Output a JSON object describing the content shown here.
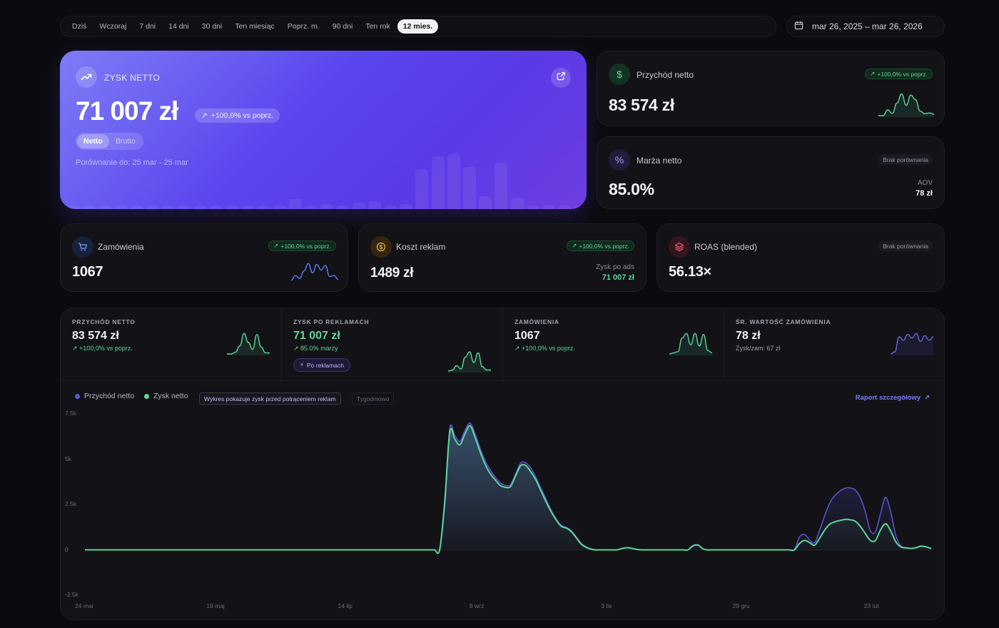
{
  "range_bar": {
    "options": [
      "Dziś",
      "Wczoraj",
      "7 dni",
      "14 dni",
      "30 dni",
      "Ten miesiąc",
      "Poprz. m.",
      "90 dni",
      "Ten rok",
      "12 mies."
    ],
    "active": "12 mies."
  },
  "date_range": {
    "label": "mar 26, 2025 – mar 26, 2026",
    "icon": "calendar-icon"
  },
  "hero": {
    "label": "ZYSK NETTO",
    "value": "71 007 zł",
    "delta": "+100,0% vs poprz.",
    "toggle": {
      "options": [
        "Netto",
        "Brutto"
      ],
      "active": "Netto"
    },
    "comparison": "Porównanie do: 25 mar - 25 mar",
    "background_bars": [
      0.05,
      0.06,
      0.05,
      0.05,
      0.05,
      0.05,
      0.05,
      0.05,
      0.06,
      0.06,
      0.05,
      0.05,
      0.05,
      0.05,
      0.16,
      0.05,
      0.08,
      0.05,
      0.1,
      0.12,
      0.06,
      0.08,
      0.62,
      0.82,
      0.85,
      0.65,
      0.2,
      0.72,
      0.18,
      0.05,
      0.05,
      0.05,
      0.06
    ]
  },
  "revenue_card": {
    "title": "Przychód netto",
    "value": "83 574 zł",
    "delta": "+100,0% vs poprz.",
    "icon": "dollar-icon",
    "spark": [
      0,
      0,
      0.25,
      0.1,
      0.55,
      0.95,
      0.45,
      0.9,
      0.7,
      0.2,
      0.08,
      0.12,
      0.06
    ]
  },
  "margin_card": {
    "title": "Marża netto",
    "value": "85.0%",
    "badge": "Brak porównania",
    "icon": "percent-icon",
    "aov_label": "AOV",
    "aov_value": "78 zł"
  },
  "orders_card": {
    "title": "Zamówienia",
    "value": "1067",
    "delta": "+100,0% vs poprz.",
    "icon": "cart-icon",
    "spark": [
      0.05,
      0.3,
      0.15,
      0.55,
      0.95,
      0.45,
      0.9,
      0.6,
      0.85,
      0.25,
      0.3,
      0.1
    ]
  },
  "ads_card": {
    "title": "Koszt reklam",
    "value": "1489 zł",
    "delta": "+100,0% vs poprz.",
    "icon": "coin-icon",
    "note_label": "Zysk po ads",
    "note_value": "71 007 zł"
  },
  "roas_card": {
    "title": "ROAS (blended)",
    "value": "56.13×",
    "badge": "Brak porównania",
    "icon": "layers-icon"
  },
  "kpis": [
    {
      "label": "PRZYCHÓD NETTO",
      "value": "83 574 zł",
      "sub": "+100,0% vs poprz.",
      "spark": [
        0,
        0,
        0.08,
        0.35,
        0.9,
        0.5,
        0.2,
        0.85,
        0.3,
        0.05,
        0.05
      ]
    },
    {
      "label": "ZYSK PO REKLAMACH",
      "value": "71 007 zł",
      "sub": "85.0% marży",
      "tag": "Po reklamach",
      "spark": [
        0,
        0.05,
        0.25,
        0.1,
        0.65,
        0.9,
        0.4,
        0.85,
        0.2,
        0.05,
        0.05
      ]
    },
    {
      "label": "ZAMÓWIENIA",
      "value": "1067",
      "sub": "+100,0% vs poprz.",
      "spark": [
        0,
        0.05,
        0.1,
        0.7,
        0.9,
        0.4,
        0.9,
        0.35,
        0.85,
        0.15,
        0.05
      ]
    },
    {
      "label": "ŚR. WARTOŚĆ ZAMÓWIENIA",
      "value": "78 zł",
      "sub": "Zysk/zam: 67 zł",
      "spark": [
        0,
        0.1,
        0.75,
        0.6,
        0.85,
        0.7,
        0.9,
        0.55,
        0.8,
        0.6,
        0.75
      ]
    }
  ],
  "legend": {
    "revenue": "Przychód netto",
    "profit": "Zysk netto"
  },
  "chart_note": "Wykres pokazuje zysk przed potrąceniem reklam",
  "weekly_label": "Tygodniowo",
  "report_link": "Raport szczegółowy",
  "colors": {
    "revenue": "#5b54d6",
    "profit": "#5ed69a",
    "accent": "#6d5cf0"
  },
  "chart_data": {
    "type": "area",
    "ylim": [
      -2500,
      7500
    ],
    "yticks": [
      "7.5k",
      "5k",
      "2.5k",
      "0",
      "-2.5k"
    ],
    "xticks": [
      "24 mar",
      "19 maj",
      "14 lip",
      "8 wrz",
      "3 lis",
      "29 gru",
      "23 lut"
    ],
    "series": [
      {
        "name": "Przychód netto",
        "values": [
          0,
          0,
          0,
          0,
          0,
          0,
          0,
          0,
          0,
          0,
          0,
          0,
          0,
          0,
          0,
          0,
          0,
          0,
          0,
          0,
          0,
          0,
          0,
          0,
          0,
          0,
          0,
          0,
          0,
          0,
          0,
          0,
          0,
          0,
          0,
          0,
          0,
          0,
          0,
          0,
          0,
          0,
          0,
          0,
          0,
          0,
          0,
          0,
          0,
          0,
          0,
          0,
          0,
          0,
          0,
          0,
          0,
          0,
          0,
          0,
          0,
          0,
          0,
          0,
          0,
          0,
          0,
          0,
          0,
          0,
          0,
          2800,
          6700,
          6300,
          6000,
          6600,
          7000,
          6400,
          5600,
          4900,
          4400,
          4000,
          3700,
          3550,
          3600,
          4200,
          4800,
          4800,
          4500,
          4000,
          3400,
          2800,
          2200,
          1700,
          1350,
          1250,
          1050,
          700,
          350,
          150,
          40,
          0,
          0,
          0,
          0,
          0,
          80,
          120,
          80,
          20,
          0,
          0,
          0,
          0,
          0,
          0,
          0,
          0,
          0,
          0,
          250,
          280,
          50,
          0,
          0,
          0,
          0,
          0,
          0,
          0,
          0,
          0,
          0,
          0,
          0,
          0,
          0,
          0,
          0,
          0,
          0,
          700,
          850,
          550,
          400,
          1100,
          1900,
          2600,
          3000,
          3250,
          3400,
          3420,
          3300,
          2900,
          2100,
          1050,
          1000,
          2000,
          2900,
          2100,
          800,
          220,
          120,
          80,
          130,
          220,
          170,
          80
        ]
      },
      {
        "name": "Zysk netto",
        "values": [
          0,
          0,
          0,
          0,
          0,
          0,
          0,
          0,
          0,
          0,
          0,
          0,
          0,
          0,
          0,
          0,
          0,
          0,
          0,
          0,
          0,
          0,
          0,
          0,
          0,
          0,
          0,
          0,
          0,
          0,
          0,
          0,
          0,
          0,
          0,
          0,
          0,
          0,
          0,
          0,
          0,
          0,
          0,
          0,
          0,
          0,
          0,
          0,
          0,
          0,
          0,
          0,
          0,
          0,
          0,
          0,
          0,
          0,
          0,
          0,
          0,
          0,
          0,
          0,
          0,
          0,
          0,
          0,
          0,
          0,
          0,
          2600,
          6500,
          6100,
          5800,
          6400,
          6850,
          6200,
          5400,
          4700,
          4200,
          3850,
          3550,
          3450,
          3500,
          4100,
          4650,
          4650,
          4300,
          3850,
          3250,
          2650,
          2100,
          1650,
          1300,
          1200,
          1000,
          650,
          300,
          130,
          30,
          0,
          0,
          0,
          0,
          0,
          80,
          120,
          80,
          20,
          0,
          0,
          0,
          0,
          0,
          0,
          0,
          0,
          0,
          0,
          220,
          260,
          50,
          0,
          0,
          0,
          0,
          0,
          0,
          0,
          0,
          0,
          0,
          0,
          0,
          0,
          0,
          0,
          0,
          0,
          0,
          350,
          520,
          400,
          260,
          650,
          1100,
          1420,
          1550,
          1620,
          1680,
          1660,
          1580,
          1300,
          900,
          520,
          520,
          1100,
          1440,
          1050,
          450,
          160,
          110,
          80,
          120,
          200,
          160,
          70
        ]
      }
    ]
  }
}
